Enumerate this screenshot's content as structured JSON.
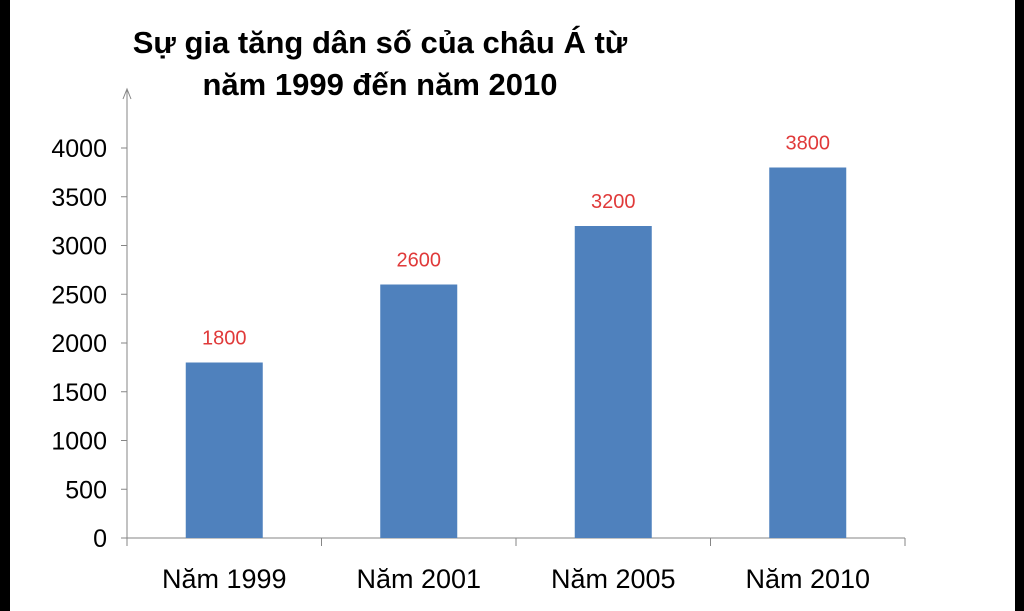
{
  "chart_data": {
    "type": "bar",
    "title": "Sự gia tăng dân số của châu Á từ năm 1999 đến năm 2010",
    "xlabel": "",
    "ylabel": "",
    "categories": [
      "Năm 1999",
      "Năm 2001",
      "Năm 2005",
      "Năm 2010"
    ],
    "values": [
      1800,
      2600,
      3200,
      3800
    ],
    "data_labels": [
      "1800",
      "2600",
      "3200",
      "3800"
    ],
    "ylim": [
      0,
      4000
    ],
    "yticks": [
      0,
      500,
      1000,
      1500,
      2000,
      2500,
      3000,
      3500,
      4000
    ],
    "grid": false,
    "legend": "none",
    "bar_color": "#4f81bd",
    "label_color": "#e03a3a"
  }
}
